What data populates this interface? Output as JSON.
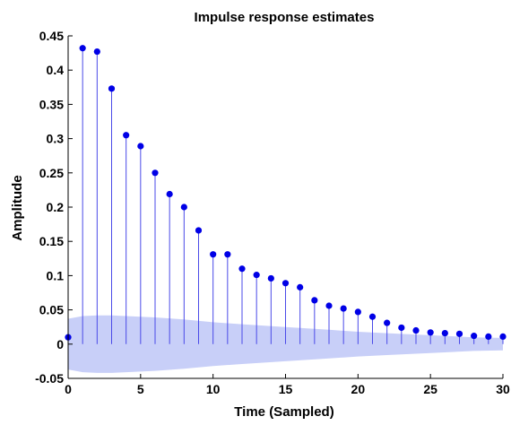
{
  "chart_data": {
    "type": "stem",
    "title": "Impulse response estimates",
    "xlabel": "Time (Sampled)",
    "ylabel": "Amplitude",
    "xlim": [
      0,
      30
    ],
    "ylim": [
      -0.05,
      0.45
    ],
    "xticks": [
      0,
      5,
      10,
      15,
      20,
      25,
      30
    ],
    "yticks": [
      -0.05,
      0,
      0.05,
      0.1,
      0.15,
      0.2,
      0.25,
      0.3,
      0.35,
      0.4,
      0.45
    ],
    "ytick_labels": [
      "-0.05",
      "0",
      "0.05",
      "0.1",
      "0.15",
      "0.2",
      "0.25",
      "0.3",
      "0.35",
      "0.4",
      "0.45"
    ],
    "grid": false,
    "series": [
      {
        "x": [
          0,
          1,
          2,
          3,
          4,
          5,
          6,
          7,
          8,
          9,
          10,
          11,
          12,
          13,
          14,
          15,
          16,
          17,
          18,
          19,
          20,
          21,
          22,
          23,
          24,
          25,
          26,
          27,
          28,
          29,
          30
        ],
        "values": [
          0.01,
          0.432,
          0.427,
          0.373,
          0.305,
          0.289,
          0.25,
          0.219,
          0.2,
          0.166,
          0.131,
          0.131,
          0.11,
          0.101,
          0.096,
          0.089,
          0.083,
          0.064,
          0.056,
          0.052,
          0.047,
          0.04,
          0.031,
          0.024,
          0.02,
          0.017,
          0.016,
          0.015,
          0.012,
          0.011,
          0.011
        ]
      }
    ],
    "confidence_band": {
      "x": [
        0,
        1,
        2,
        3,
        4,
        5,
        6,
        8,
        10,
        12,
        15,
        18,
        20,
        22,
        25,
        28,
        30
      ],
      "upper": [
        0.037,
        0.041,
        0.042,
        0.042,
        0.041,
        0.04,
        0.039,
        0.036,
        0.032,
        0.029,
        0.025,
        0.021,
        0.018,
        0.016,
        0.013,
        0.01,
        0.009
      ],
      "lower": [
        -0.037,
        -0.041,
        -0.042,
        -0.042,
        -0.041,
        -0.04,
        -0.039,
        -0.036,
        -0.032,
        -0.029,
        -0.025,
        -0.021,
        -0.018,
        -0.016,
        -0.013,
        -0.01,
        -0.009
      ]
    },
    "colors": {
      "stem": "#4a4ae8",
      "marker": "#0000e6",
      "band": "#c8cff8"
    }
  }
}
